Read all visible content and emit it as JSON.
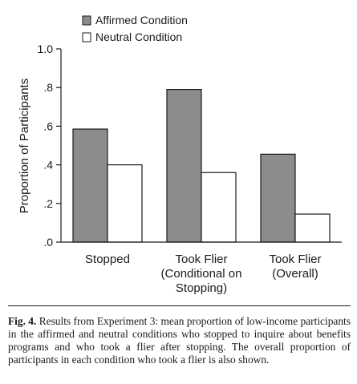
{
  "chart_data": {
    "type": "bar",
    "categories": [
      [
        "Stopped"
      ],
      [
        "Took Flier",
        "(Conditional on",
        "Stopping)"
      ],
      [
        "Took Flier",
        "(Overall)"
      ]
    ],
    "series": [
      {
        "name": "Affirmed Condition",
        "values": [
          0.585,
          0.79,
          0.455
        ],
        "color": "#8c8c8c"
      },
      {
        "name": "Neutral Condition",
        "values": [
          0.4,
          0.36,
          0.145
        ],
        "color": "#ffffff"
      }
    ],
    "ylabel": "Proportion of Participants",
    "ylim": [
      0,
      1.0
    ],
    "yticks": [
      0,
      0.2,
      0.4,
      0.6,
      0.8,
      1.0
    ],
    "ytick_labels": [
      ".0",
      ".2",
      ".4",
      ".6",
      ".8",
      "1.0"
    ],
    "legend_position": "top-left",
    "grid": false
  },
  "caption": {
    "label": "Fig. 4.",
    "text": "Results from Experiment 3: mean proportion of low-income participants in the affirmed and neutral conditions who stopped to inquire about benefits programs and who took a flier after stopping. The overall proportion of participants in each condition who took a flier is also shown."
  }
}
